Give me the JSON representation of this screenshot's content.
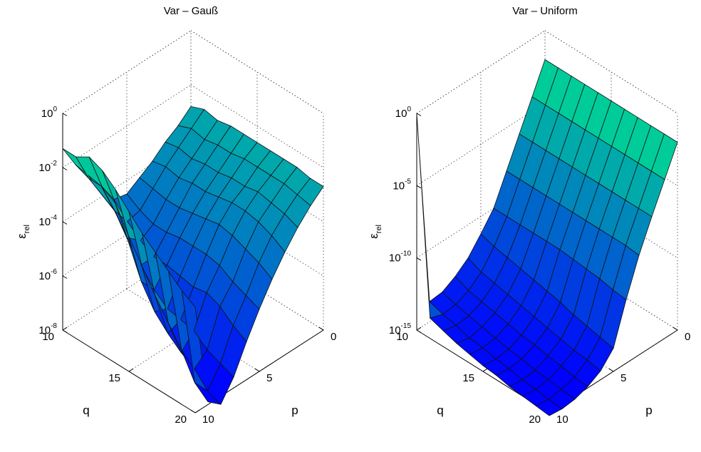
{
  "chart_data": [
    {
      "type": "surface",
      "title": "Var – Gauß",
      "xlabel": "q",
      "ylabel": "p",
      "zlabel_main": "ε",
      "zlabel_sub": "rel",
      "x_ticks": [
        "10",
        "15",
        "20"
      ],
      "y_ticks": [
        "0",
        "5",
        "10"
      ],
      "z_ticks": [
        {
          "base": "10",
          "exp": "0"
        },
        {
          "base": "10",
          "exp": "-2"
        },
        {
          "base": "10",
          "exp": "-4"
        },
        {
          "base": "10",
          "exp": "-6"
        },
        {
          "base": "10",
          "exp": "-8"
        }
      ],
      "xlim": [
        10,
        20
      ],
      "ylim": [
        0,
        10
      ],
      "zlim_log10": [
        -8,
        0
      ],
      "z_scale": "log",
      "grid": true,
      "colormap": "winter",
      "q_values": [
        10,
        11,
        12,
        13,
        14,
        15,
        16,
        17,
        18,
        19,
        20
      ],
      "p_values": [
        0,
        1,
        2,
        3,
        4,
        5,
        6,
        7,
        8,
        9,
        10
      ],
      "log10_eps_rows_by_q": [
        [
          -2.8,
          -3.2,
          -3.5,
          -3.9,
          -4.2,
          -4.5,
          -4.4,
          -3.6,
          -2.9,
          -2.2,
          -1.3
        ],
        [
          -2.6,
          -3.0,
          -3.4,
          -3.8,
          -4.3,
          -4.8,
          -4.9,
          -4.2,
          -3.3,
          -2.4,
          -1.3
        ],
        [
          -2.7,
          -3.1,
          -3.5,
          -3.9,
          -4.4,
          -5.0,
          -5.3,
          -4.9,
          -3.6,
          -2.4,
          -1.0
        ],
        [
          -2.6,
          -3.0,
          -3.4,
          -3.8,
          -4.4,
          -5.0,
          -5.6,
          -5.6,
          -4.4,
          -2.7,
          -1.2
        ],
        [
          -2.6,
          -3.0,
          -3.4,
          -3.8,
          -4.3,
          -4.9,
          -5.6,
          -6.2,
          -5.6,
          -3.6,
          -1.6
        ],
        [
          -2.6,
          -2.9,
          -3.3,
          -3.7,
          -4.2,
          -4.9,
          -5.7,
          -6.6,
          -6.4,
          -4.4,
          -2.1
        ],
        [
          -2.6,
          -2.9,
          -3.3,
          -3.6,
          -4.1,
          -4.9,
          -5.8,
          -6.7,
          -6.9,
          -5.2,
          -2.6
        ],
        [
          -2.6,
          -2.9,
          -3.2,
          -3.6,
          -4.2,
          -5.0,
          -5.7,
          -6.8,
          -7.3,
          -5.9,
          -3.0
        ],
        [
          -2.6,
          -2.9,
          -3.3,
          -3.7,
          -4.4,
          -5.3,
          -5.9,
          -7.2,
          -7.6,
          -6.6,
          -3.4
        ],
        [
          -2.7,
          -3.0,
          -3.4,
          -3.9,
          -4.6,
          -5.5,
          -6.3,
          -7.4,
          -8.1,
          -7.5,
          -3.8
        ],
        [
          -2.7,
          -3.1,
          -3.6,
          -4.2,
          -4.9,
          -5.7,
          -6.6,
          -7.6,
          -8.3,
          -7.9,
          -4.1
        ]
      ]
    },
    {
      "type": "surface",
      "title": "Var – Uniform",
      "xlabel": "q",
      "ylabel": "p",
      "zlabel_main": "ε",
      "zlabel_sub": "rel",
      "x_ticks": [
        "10",
        "15",
        "20"
      ],
      "y_ticks": [
        "0",
        "5",
        "10"
      ],
      "z_ticks": [
        {
          "base": "10",
          "exp": "0"
        },
        {
          "base": "10",
          "exp": "-5"
        },
        {
          "base": "10",
          "exp": "-10"
        },
        {
          "base": "10",
          "exp": "-15"
        }
      ],
      "xlim": [
        10,
        20
      ],
      "ylim": [
        0,
        10
      ],
      "zlim_log10": [
        -15,
        0
      ],
      "z_scale": "log",
      "grid": true,
      "colormap": "winter",
      "q_values": [
        10,
        11,
        12,
        13,
        14,
        15,
        16,
        17,
        18,
        19,
        20
      ],
      "p_values": [
        0,
        1,
        2,
        3,
        4,
        5,
        6,
        7,
        8,
        9,
        10
      ],
      "log10_eps_rows_by_q": [
        [
          -2.0,
          -4.0,
          -6.0,
          -8.0,
          -10.0,
          -11.2,
          -12.3,
          -13.0,
          -13.5,
          -13.6,
          0.0
        ],
        [
          -2.0,
          -4.0,
          -6.0,
          -8.0,
          -10.0,
          -11.5,
          -12.7,
          -13.4,
          -13.8,
          -13.9,
          -13.6
        ],
        [
          -2.0,
          -4.0,
          -6.0,
          -8.0,
          -10.0,
          -11.7,
          -12.9,
          -13.6,
          -14.0,
          -14.1,
          -13.9
        ],
        [
          -2.0,
          -4.0,
          -6.0,
          -8.0,
          -10.0,
          -11.9,
          -13.1,
          -13.8,
          -14.2,
          -14.4,
          -14.2
        ],
        [
          -2.0,
          -4.0,
          -6.0,
          -8.0,
          -10.0,
          -12.1,
          -13.3,
          -14.0,
          -14.4,
          -14.5,
          -14.4
        ],
        [
          -2.0,
          -4.0,
          -6.0,
          -8.0,
          -10.0,
          -12.3,
          -13.5,
          -14.2,
          -14.6,
          -14.7,
          -14.6
        ],
        [
          -2.0,
          -4.0,
          -6.0,
          -8.0,
          -10.1,
          -12.5,
          -13.7,
          -14.3,
          -14.7,
          -14.8,
          -14.7
        ],
        [
          -2.0,
          -4.0,
          -6.0,
          -8.0,
          -10.2,
          -12.8,
          -13.9,
          -14.5,
          -14.9,
          -15.0,
          -14.9
        ],
        [
          -2.0,
          -4.0,
          -6.0,
          -8.0,
          -10.3,
          -13.0,
          -14.1,
          -14.6,
          -15.0,
          -15.1,
          -15.0
        ],
        [
          -2.0,
          -4.0,
          -6.0,
          -8.0,
          -10.5,
          -13.2,
          -14.2,
          -14.8,
          -15.1,
          -15.2,
          -15.1
        ],
        [
          -2.0,
          -4.0,
          -6.0,
          -8.1,
          -10.6,
          -13.4,
          -14.4,
          -14.9,
          -15.2,
          -15.3,
          -15.2
        ]
      ]
    }
  ]
}
